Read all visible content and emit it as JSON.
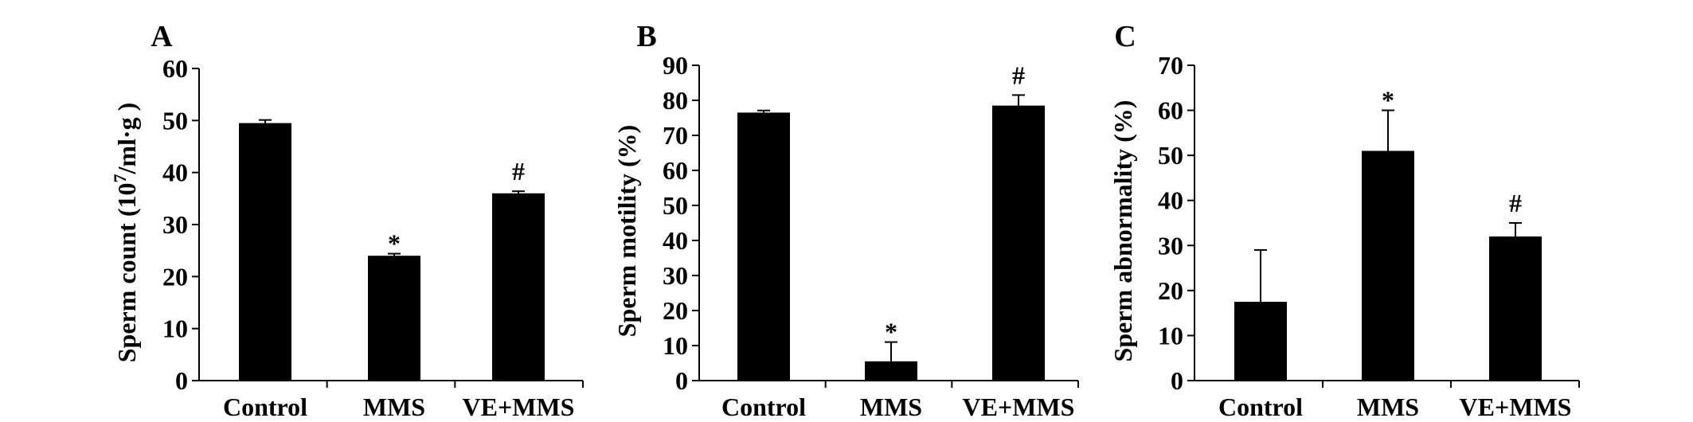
{
  "figure": {
    "background": "#ffffff",
    "bar_color": "#000000"
  },
  "chart_data": [
    {
      "type": "bar",
      "panel": "A",
      "ylabel_main": "Sperm count (10",
      "ylabel_sup": "7",
      "ylabel_tail": "/ml·g )",
      "categories": [
        "Control",
        "MMS",
        "VE+MMS"
      ],
      "values": [
        49.5,
        24.0,
        36.0
      ],
      "errors": [
        0.6,
        0.4,
        0.4
      ],
      "annotations": [
        "",
        "*",
        "#"
      ],
      "ylim": [
        0,
        60
      ],
      "yticks": [
        0,
        10,
        20,
        30,
        40,
        50,
        60
      ],
      "grid": false,
      "legend": "none"
    },
    {
      "type": "bar",
      "panel": "B",
      "ylabel": "Sperm motility (%)",
      "categories": [
        "Control",
        "MMS",
        "VE+MMS"
      ],
      "values": [
        76.5,
        5.5,
        78.5
      ],
      "errors": [
        0.6,
        5.5,
        3.0
      ],
      "annotations": [
        "",
        "*",
        "#"
      ],
      "ylim": [
        0,
        90
      ],
      "yticks": [
        0,
        10,
        20,
        30,
        40,
        50,
        60,
        70,
        80,
        90
      ],
      "grid": false,
      "legend": "none"
    },
    {
      "type": "bar",
      "panel": "C",
      "ylabel": "Sperm abnormality (%)",
      "categories": [
        "Control",
        "MMS",
        "VE+MMS"
      ],
      "values": [
        17.5,
        51.0,
        32.0
      ],
      "errors": [
        11.5,
        9.0,
        3.0
      ],
      "annotations": [
        "",
        "*",
        "#"
      ],
      "ylim": [
        0,
        70
      ],
      "yticks": [
        0,
        10,
        20,
        30,
        40,
        50,
        60,
        70
      ],
      "grid": false,
      "legend": "none"
    }
  ]
}
